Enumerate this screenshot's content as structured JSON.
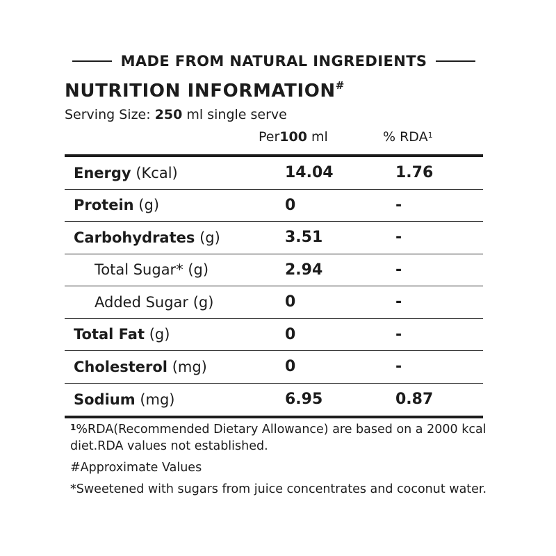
{
  "tagline": "MADE FROM NATURAL INGREDIENTS",
  "title": "NUTRITION INFORMATION",
  "title_mark": "#",
  "serving": {
    "label": "Serving Size:",
    "amount": "250",
    "unit": "ml single serve"
  },
  "columns": {
    "per_prefix": "Per",
    "per_amount": "100",
    "per_unit": "ml",
    "rda_label": "% RDA",
    "rda_mark": "1"
  },
  "rows": [
    {
      "name": "Energy",
      "unit": "(Kcal)",
      "value": "14.04",
      "rda": "1.76"
    },
    {
      "name": "Protein",
      "unit": "(g)",
      "value": "0",
      "rda": "-"
    },
    {
      "name": "Carbohydrates",
      "unit": "(g)",
      "value": "3.51",
      "rda": "-"
    },
    {
      "name": "Total Sugar* (g)",
      "value": "2.94",
      "rda": "-"
    },
    {
      "name": "Added Sugar (g)",
      "value": "0",
      "rda": "-"
    },
    {
      "name": "Total Fat",
      "unit": "(g)",
      "value": "0",
      "rda": "-"
    },
    {
      "name": "Cholesterol",
      "unit": "(mg)",
      "value": "0",
      "rda": "-"
    },
    {
      "name": "Sodium",
      "unit": "(mg)",
      "value": "6.95",
      "rda": "0.87"
    }
  ],
  "notes": {
    "rda_mark": "1",
    "rda_text": "%RDA(Recommended Dietary Allowance) are based on a 2000 kcal diet.RDA values not established.",
    "approx": "#Approximate Values",
    "sweetened": "*Sweetened with sugars from juice concentrates and coconut water."
  }
}
